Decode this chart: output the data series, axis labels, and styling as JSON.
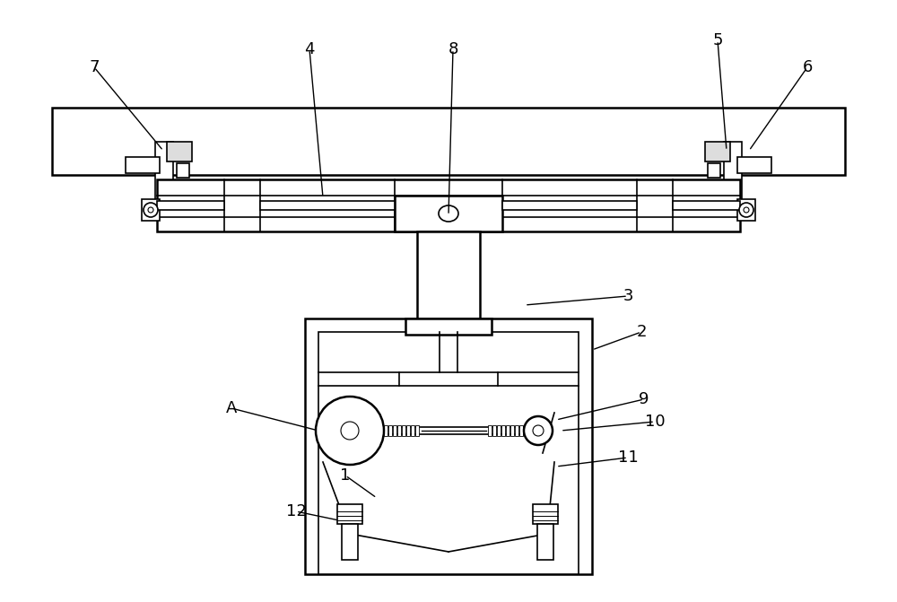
{
  "bg_color": "#ffffff",
  "line_color": "#000000",
  "fig_width": 10.0,
  "fig_height": 6.71,
  "dpi": 100
}
